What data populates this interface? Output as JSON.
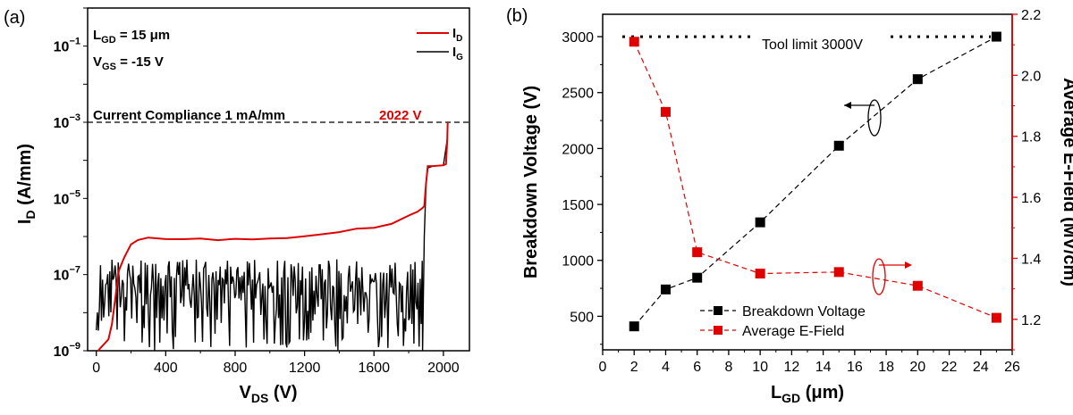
{
  "chart_data": [
    {
      "type": "line",
      "panel_label": "(a)",
      "xlabel": "V",
      "xlabel_sub": "DS",
      "xlabel_unit": " (V)",
      "ylabel": "I",
      "ylabel_sub": "D",
      "ylabel_unit": " (A/mm)",
      "xlim": [
        -50,
        2150
      ],
      "ylim_log10": [
        -9,
        0
      ],
      "yscale": "log",
      "x_ticks": [
        "0",
        "400",
        "800",
        "1200",
        "1600",
        "2000"
      ],
      "y_ticks": [
        {
          "base": "10",
          "exp": "−9",
          "value": -9
        },
        {
          "base": "10",
          "exp": "−7",
          "value": -7
        },
        {
          "base": "10",
          "exp": "−5",
          "value": -5
        },
        {
          "base": "10",
          "exp": "−3",
          "value": -3
        },
        {
          "base": "10",
          "exp": "−1",
          "value": -1
        }
      ],
      "conditions": [
        {
          "sym": "L",
          "sub": "GD",
          "rest": " = 15 μm"
        },
        {
          "sym": "V",
          "sub": "GS",
          "rest": " = -15 V"
        }
      ],
      "compliance_label": "Current Compliance  1 mA/mm",
      "compliance_value": 0.001,
      "breakdown_label": "2022 V",
      "legend": [
        {
          "sym": "I",
          "sub": "D",
          "color": "#e00000"
        },
        {
          "sym": "I",
          "sub": "G",
          "color": "#000000"
        }
      ],
      "series": [
        {
          "name": "ID",
          "color": "#e00000",
          "x": [
            10,
            30,
            50,
            70,
            90,
            110,
            130,
            160,
            200,
            240,
            300,
            400,
            500,
            600,
            700,
            800,
            900,
            1000,
            1100,
            1200,
            1300,
            1400,
            1500,
            1600,
            1700,
            1800,
            1850,
            1880,
            1890,
            1900,
            1910,
            1940,
            2000,
            2015,
            2022,
            2025
          ],
          "log10_y": [
            -9.0,
            -8.9,
            -8.8,
            -8.7,
            -8.3,
            -7.6,
            -6.9,
            -6.55,
            -6.2,
            -6.1,
            -6.05,
            -6.05,
            -6.05,
            -6.08,
            -6.07,
            -6.08,
            -6.05,
            -6.05,
            -6.02,
            -6.0,
            -5.95,
            -5.88,
            -5.82,
            -5.75,
            -5.65,
            -5.45,
            -5.35,
            -5.25,
            -5.2,
            -4.6,
            -4.15,
            -4.15,
            -4.13,
            -4.1,
            -3.45,
            -3.0
          ]
        },
        {
          "name": "IG",
          "color": "#000000",
          "x_start": 0,
          "x_end": 1880,
          "noise_log10_range": [
            -9,
            -6.6
          ],
          "post_breakdown": {
            "x": [
              1880,
              1890,
              1900,
              1910,
              1940,
              2000,
              2022
            ],
            "log10_y": [
              -9.0,
              -6.0,
              -4.6,
              -4.2,
              -4.15,
              -4.13,
              -3.45
            ]
          }
        }
      ]
    },
    {
      "type": "scatter-line",
      "panel_label": "(b)",
      "xlabel": "L",
      "xlabel_sub": "GD",
      "xlabel_unit": " (μm)",
      "ylabel_left": "Breakdown Voltage (V)",
      "ylabel_right": "Average E-Field (MV/cm)",
      "xlim": [
        0,
        26
      ],
      "ylim_left": [
        200,
        3200
      ],
      "ylim_right": [
        1.1,
        2.2
      ],
      "x_ticks": [
        "0",
        "2",
        "4",
        "6",
        "8",
        "10",
        "12",
        "14",
        "16",
        "18",
        "20",
        "22",
        "24",
        "26"
      ],
      "y_ticks_left": [
        "500",
        "1000",
        "1500",
        "2000",
        "2500",
        "3000"
      ],
      "y_ticks_right": [
        "1.2",
        "1.4",
        "1.6",
        "1.8",
        "2.0",
        "2.2"
      ],
      "tool_limit_label": "Tool limit 3000V",
      "tool_limit_value": 3000,
      "series": [
        {
          "name": "Breakdown Voltage",
          "axis": "left",
          "color": "#000000",
          "x": [
            2,
            4,
            6,
            10,
            15,
            20,
            25
          ],
          "y": [
            410,
            740,
            845,
            1340,
            2025,
            2620,
            3000
          ]
        },
        {
          "name": "Average E-Field",
          "axis": "right",
          "color": "#e00000",
          "x": [
            2,
            4,
            6,
            10,
            15,
            20,
            25
          ],
          "y": [
            2.11,
            1.88,
            1.42,
            1.35,
            1.355,
            1.31,
            1.205
          ]
        }
      ],
      "legend_placement": "bottom-center"
    }
  ]
}
